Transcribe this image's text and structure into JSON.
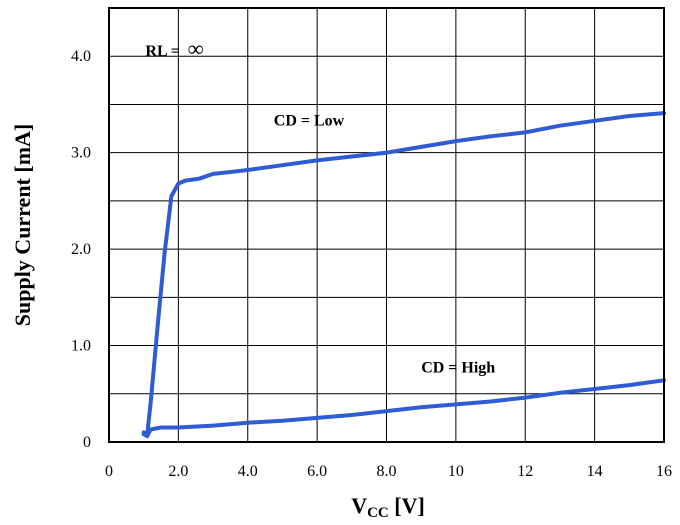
{
  "chart_data": {
    "type": "line",
    "xlabel_main": "V",
    "xlabel_sub": "CC",
    "xlabel_unit": " [V]",
    "ylabel": "Supply Current [mA]",
    "xlim": [
      0,
      16
    ],
    "ylim": [
      0,
      4.5
    ],
    "grid": true,
    "x_ticks": [
      0,
      2,
      4,
      6,
      8,
      10,
      12,
      14,
      16
    ],
    "x_tick_labels": [
      "0",
      "2.0",
      "4.0",
      "6.0",
      "8.0",
      "10",
      "12",
      "14",
      "16"
    ],
    "y_ticks": [
      0,
      1,
      2,
      3,
      4
    ],
    "y_tick_labels": [
      "0",
      "1.0",
      "2.0",
      "3.0",
      "4.0"
    ],
    "line_color": "#2f5bd3",
    "annotations": [
      {
        "text_main": "RL = ",
        "text_symbol": "∞",
        "x": 1.05,
        "y": 4.0
      },
      {
        "text": "CD = Low",
        "x": 4.75,
        "y": 3.28
      },
      {
        "text": "CD = High",
        "x": 9.0,
        "y": 0.72
      }
    ],
    "series": [
      {
        "values": [
          [
            1.0,
            0.1
          ],
          [
            1.1,
            0.08
          ],
          [
            1.2,
            0.4
          ],
          [
            1.4,
            1.2
          ],
          [
            1.6,
            1.95
          ],
          [
            1.8,
            2.55
          ],
          [
            2.0,
            2.68
          ],
          [
            2.2,
            2.71
          ],
          [
            2.6,
            2.73
          ],
          [
            3.0,
            2.78
          ],
          [
            3.5,
            2.8
          ],
          [
            4.0,
            2.82
          ],
          [
            5.0,
            2.87
          ],
          [
            6.0,
            2.92
          ],
          [
            7.0,
            2.96
          ],
          [
            8.0,
            3.0
          ],
          [
            9.0,
            3.06
          ],
          [
            10.0,
            3.12
          ],
          [
            11.0,
            3.17
          ],
          [
            12.0,
            3.21
          ],
          [
            13.0,
            3.28
          ],
          [
            14.0,
            3.33
          ],
          [
            15.0,
            3.38
          ],
          [
            16.0,
            3.41
          ]
        ]
      },
      {
        "values": [
          [
            1.0,
            0.08
          ],
          [
            1.1,
            0.06
          ],
          [
            1.2,
            0.13
          ],
          [
            1.5,
            0.15
          ],
          [
            2.0,
            0.15
          ],
          [
            3.0,
            0.17
          ],
          [
            4.0,
            0.2
          ],
          [
            5.0,
            0.22
          ],
          [
            6.0,
            0.25
          ],
          [
            7.0,
            0.28
          ],
          [
            8.0,
            0.32
          ],
          [
            9.0,
            0.36
          ],
          [
            10.0,
            0.39
          ],
          [
            11.0,
            0.42
          ],
          [
            12.0,
            0.46
          ],
          [
            13.0,
            0.51
          ],
          [
            14.0,
            0.55
          ],
          [
            15.0,
            0.59
          ],
          [
            16.0,
            0.64
          ]
        ]
      }
    ]
  }
}
